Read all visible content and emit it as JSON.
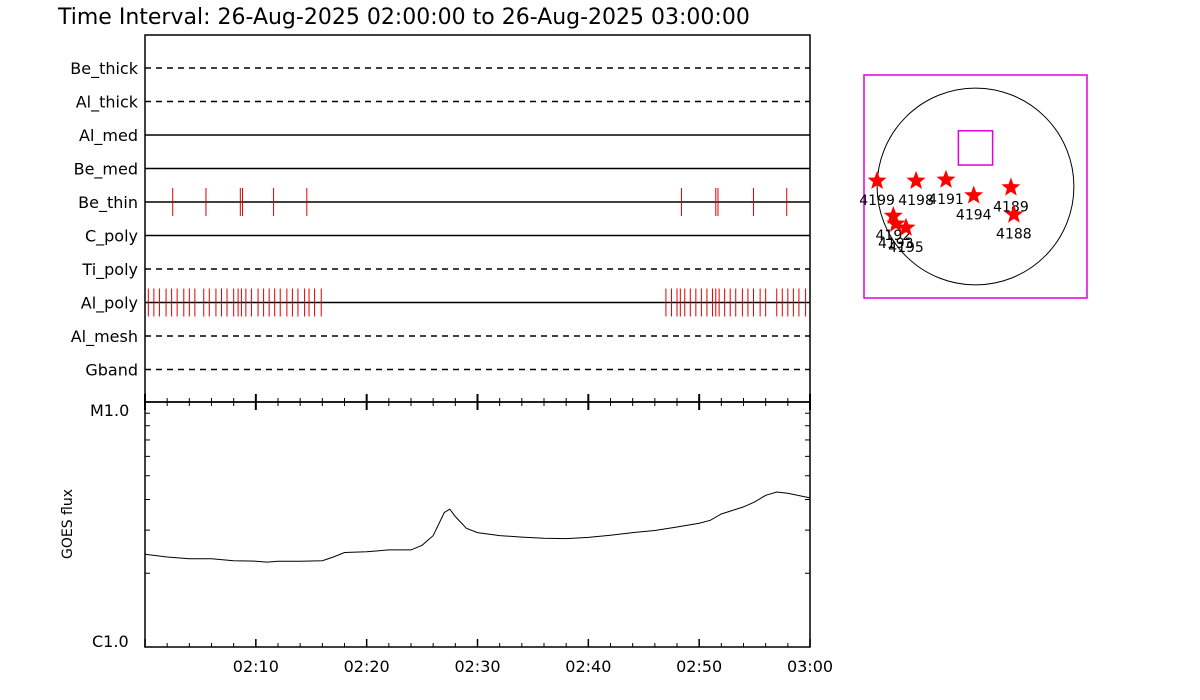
{
  "title": "Time Interval: 26-Aug-2025 02:00:00 to 26-Aug-2025 03:00:00",
  "colors": {
    "events": "#e00000",
    "fov": "#e000e0",
    "stars": "#ff0000",
    "axes": "#000000"
  },
  "chart_data": [
    {
      "type": "timeline",
      "x_range": [
        "02:00",
        "03:00"
      ],
      "channels": [
        {
          "name": "Be_thick",
          "style": "dashed",
          "events": []
        },
        {
          "name": "Al_thick",
          "style": "dashed",
          "events": []
        },
        {
          "name": "Al_med",
          "style": "solid",
          "events": []
        },
        {
          "name": "Be_med",
          "style": "solid",
          "events": []
        },
        {
          "name": "Be_thin",
          "style": "solid",
          "events": [
            2.5,
            5.5,
            8.6,
            8.8,
            11.6,
            14.6,
            48.4,
            51.5,
            51.7,
            54.9,
            57.9
          ]
        },
        {
          "name": "C_poly",
          "style": "solid",
          "events": []
        },
        {
          "name": "Ti_poly",
          "style": "dashed",
          "events": []
        },
        {
          "name": "Al_poly",
          "style": "solid",
          "events": [
            0.3,
            0.8,
            1.3,
            1.9,
            2.4,
            2.9,
            3.5,
            4.0,
            4.5,
            5.3,
            5.8,
            6.4,
            6.9,
            7.4,
            8.0,
            8.4,
            8.7,
            9.1,
            9.6,
            10.2,
            10.7,
            11.2,
            11.7,
            12.2,
            12.8,
            13.3,
            13.8,
            14.4,
            14.8,
            15.3,
            15.9,
            47.0,
            47.5,
            48.0,
            48.3,
            48.7,
            49.2,
            49.7,
            50.2,
            50.7,
            51.2,
            51.5,
            51.8,
            52.3,
            52.8,
            53.3,
            53.9,
            54.4,
            54.9,
            55.5,
            56.0,
            57.0,
            57.5,
            58.0,
            58.5,
            59.0,
            59.6
          ]
        },
        {
          "name": "Al_mesh",
          "style": "dashed",
          "events": []
        },
        {
          "name": "Gband",
          "style": "dashed",
          "events": []
        }
      ]
    },
    {
      "type": "line",
      "xlabel": "",
      "ylabel": "GOES flux",
      "yscale": "log",
      "ylim": [
        1e-06,
        1e-05
      ],
      "y_tick_labels": [
        "C1.0",
        "M1.0"
      ],
      "x_range": [
        "02:00",
        "03:00"
      ],
      "x_ticks": [
        "02:10",
        "02:20",
        "02:30",
        "02:40",
        "02:50",
        "03:00"
      ],
      "series": [
        {
          "points": [
            [
              "02:00",
              2.39e-06
            ],
            [
              "02:02",
              2.33e-06
            ],
            [
              "02:04",
              2.29e-06
            ],
            [
              "02:06",
              2.29e-06
            ],
            [
              "02:08",
              2.25e-06
            ],
            [
              "02:10",
              2.24e-06
            ],
            [
              "02:11",
              2.22e-06
            ],
            [
              "02:12",
              2.24e-06
            ],
            [
              "02:14",
              2.24e-06
            ],
            [
              "02:16",
              2.25e-06
            ],
            [
              "02:17",
              2.33e-06
            ],
            [
              "02:18",
              2.43e-06
            ],
            [
              "02:20",
              2.45e-06
            ],
            [
              "02:22",
              2.49e-06
            ],
            [
              "02:24",
              2.49e-06
            ],
            [
              "02:25",
              2.6e-06
            ],
            [
              "02:26",
              2.85e-06
            ],
            [
              "02:27",
              3.54e-06
            ],
            [
              "02:27:30",
              3.65e-06
            ],
            [
              "02:28",
              3.41e-06
            ],
            [
              "02:29",
              3.05e-06
            ],
            [
              "02:30",
              2.93e-06
            ],
            [
              "02:32",
              2.85e-06
            ],
            [
              "02:34",
              2.81e-06
            ],
            [
              "02:36",
              2.78e-06
            ],
            [
              "02:38",
              2.77e-06
            ],
            [
              "02:40",
              2.8e-06
            ],
            [
              "02:42",
              2.86e-06
            ],
            [
              "02:44",
              2.93e-06
            ],
            [
              "02:46",
              2.99e-06
            ],
            [
              "02:48",
              3.09e-06
            ],
            [
              "02:50",
              3.2e-06
            ],
            [
              "02:51",
              3.29e-06
            ],
            [
              "02:52",
              3.49e-06
            ],
            [
              "02:54",
              3.73e-06
            ],
            [
              "02:55",
              3.91e-06
            ],
            [
              "02:56",
              4.16e-06
            ],
            [
              "02:57",
              4.29e-06
            ],
            [
              "02:58",
              4.24e-06
            ],
            [
              "03:00",
              4.06e-06
            ]
          ]
        }
      ]
    },
    {
      "type": "scatter",
      "description_units": "arcsec",
      "xlim": [
        -1133,
        1133
      ],
      "ylim": [
        -1133,
        1133
      ],
      "solar_radius": 1000,
      "fov_box": [
        -174,
        174,
        218,
        566
      ],
      "points": [
        {
          "x": -1000,
          "y": 57,
          "label": "4199"
        },
        {
          "x": -604,
          "y": 57,
          "label": "4198"
        },
        {
          "x": -300,
          "y": 68,
          "label": "4191"
        },
        {
          "x": -18,
          "y": -91,
          "label": "4194"
        },
        {
          "x": 360,
          "y": -10,
          "label": "4189"
        },
        {
          "x": -835,
          "y": -300,
          "label": "4192"
        },
        {
          "x": -810,
          "y": -379,
          "label": "4193"
        },
        {
          "x": -706,
          "y": -420,
          "label": "4195"
        },
        {
          "x": 390,
          "y": -286,
          "label": "4188"
        }
      ]
    }
  ]
}
